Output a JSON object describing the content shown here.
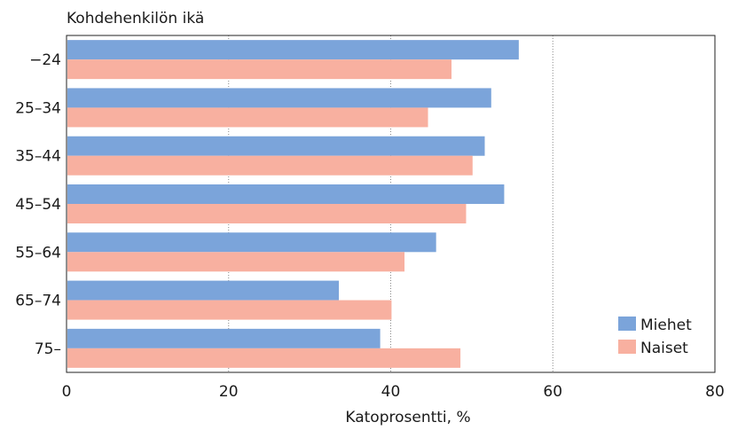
{
  "chart_data": {
    "type": "bar",
    "orientation": "horizontal",
    "title": "Kohdehenkilön ikä",
    "xlabel": "Katoprosentti, %",
    "ylabel": "",
    "xlim": [
      0,
      80
    ],
    "x_ticks": [
      "0",
      "20",
      "40",
      "60",
      "80"
    ],
    "grid": "vertical dotted lines",
    "legend_position": "bottom-right",
    "categories": [
      "−24",
      "25–34",
      "35–44",
      "45–54",
      "55–64",
      "65–74",
      "75–"
    ],
    "series": [
      {
        "name": "Miehet",
        "color": "#7ba4da",
        "values": [
          55.8,
          52.4,
          51.6,
          54.0,
          45.6,
          33.6,
          38.7
        ]
      },
      {
        "name": "Naiset",
        "color": "#f8b0a0",
        "values": [
          47.5,
          44.6,
          50.1,
          49.3,
          41.7,
          40.1,
          48.6
        ]
      }
    ]
  }
}
